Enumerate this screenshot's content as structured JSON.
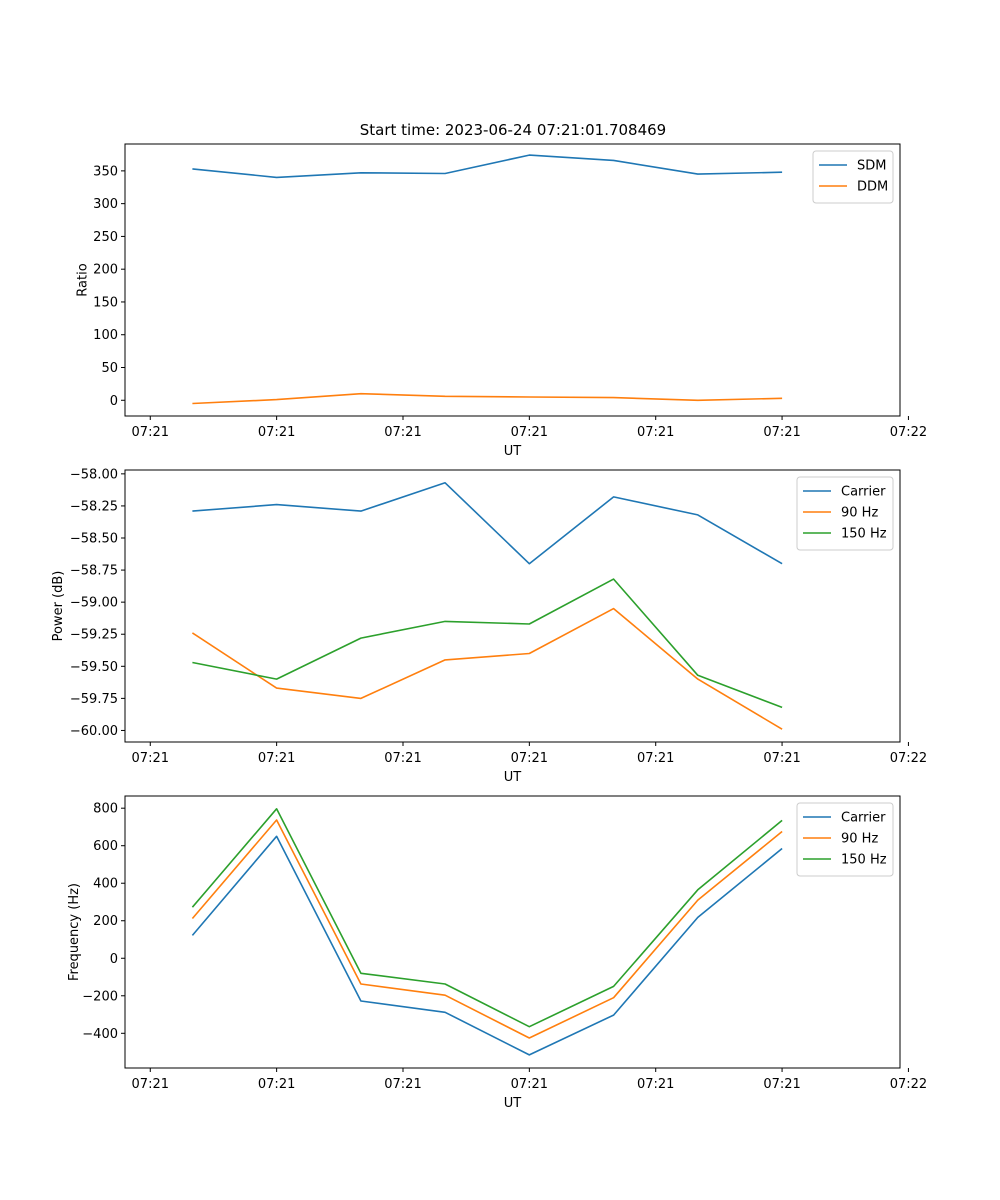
{
  "figure_title": "Start time: 2023-06-24 07:21:01.708469",
  "chart_data": [
    {
      "type": "line",
      "title": "Start time: 2023-06-24 07:21:01.708469",
      "xlabel": "UT",
      "ylabel": "Ratio",
      "x": [
        1,
        2,
        3,
        4,
        5,
        6,
        7,
        8
      ],
      "xlim": [
        0.2,
        9.4
      ],
      "xticks": [
        0.5,
        2,
        3.5,
        5,
        6.5,
        8,
        9.5
      ],
      "xticklabels": [
        "07:21",
        "07:21",
        "07:21",
        "07:21",
        "07:21",
        "07:21",
        "07:22"
      ],
      "ylim": [
        -24,
        391
      ],
      "yticks": [
        0,
        50,
        100,
        150,
        200,
        250,
        300,
        350
      ],
      "yticklabels": [
        "0",
        "50",
        "100",
        "150",
        "200",
        "250",
        "300",
        "350"
      ],
      "legend_position": "upper right",
      "series": [
        {
          "name": "SDM",
          "color": "#1f77b4",
          "values": [
            353,
            340,
            347,
            346,
            374,
            366,
            345,
            348
          ]
        },
        {
          "name": "DDM",
          "color": "#ff7f0e",
          "values": [
            -5,
            1,
            10,
            6,
            5,
            4,
            0,
            3
          ]
        }
      ]
    },
    {
      "type": "line",
      "title": "",
      "xlabel": "UT",
      "ylabel": "Power (dB)",
      "x": [
        1,
        2,
        3,
        4,
        5,
        6,
        7,
        8
      ],
      "xlim": [
        0.2,
        9.4
      ],
      "xticks": [
        0.5,
        2,
        3.5,
        5,
        6.5,
        8,
        9.5
      ],
      "xticklabels": [
        "07:21",
        "07:21",
        "07:21",
        "07:21",
        "07:21",
        "07:21",
        "07:22"
      ],
      "ylim": [
        -60.09,
        -57.97
      ],
      "yticks": [
        -58.0,
        -58.25,
        -58.5,
        -58.75,
        -59.0,
        -59.25,
        -59.5,
        -59.75,
        -60.0
      ],
      "yticklabels": [
        "−58.00",
        "−58.25",
        "−58.50",
        "−58.75",
        "−59.00",
        "−59.25",
        "−59.50",
        "−59.75",
        "−60.00"
      ],
      "legend_position": "upper right",
      "series": [
        {
          "name": "Carrier",
          "color": "#1f77b4",
          "values": [
            -58.29,
            -58.24,
            -58.29,
            -58.07,
            -58.7,
            -58.18,
            -58.32,
            -58.7
          ]
        },
        {
          "name": "90 Hz",
          "color": "#ff7f0e",
          "values": [
            -59.24,
            -59.67,
            -59.75,
            -59.45,
            -59.4,
            -59.05,
            -59.6,
            -59.99
          ]
        },
        {
          "name": "150 Hz",
          "color": "#2ca02c",
          "values": [
            -59.47,
            -59.6,
            -59.28,
            -59.15,
            -59.17,
            -58.82,
            -59.57,
            -59.82
          ]
        }
      ]
    },
    {
      "type": "line",
      "title": "",
      "xlabel": "UT",
      "ylabel": "Frequency (Hz)",
      "x": [
        1,
        2,
        3,
        4,
        5,
        6,
        7,
        8
      ],
      "xlim": [
        0.2,
        9.4
      ],
      "xticks": [
        0.5,
        2,
        3.5,
        5,
        6.5,
        8,
        9.5
      ],
      "xticklabels": [
        "07:21",
        "07:21",
        "07:21",
        "07:21",
        "07:21",
        "07:21",
        "07:22"
      ],
      "ylim": [
        -585,
        865
      ],
      "yticks": [
        -400,
        -200,
        0,
        200,
        400,
        600,
        800
      ],
      "yticklabels": [
        "−400",
        "−200",
        "0",
        "200",
        "400",
        "600",
        "800"
      ],
      "legend_position": "upper right",
      "series": [
        {
          "name": "Carrier",
          "color": "#1f77b4",
          "values": [
            122,
            650,
            -228,
            -288,
            -515,
            -303,
            218,
            585
          ]
        },
        {
          "name": "90 Hz",
          "color": "#ff7f0e",
          "values": [
            212,
            737,
            -137,
            -197,
            -425,
            -210,
            310,
            676
          ]
        },
        {
          "name": "150 Hz",
          "color": "#2ca02c",
          "values": [
            272,
            797,
            -80,
            -137,
            -365,
            -150,
            365,
            735
          ]
        }
      ]
    }
  ]
}
